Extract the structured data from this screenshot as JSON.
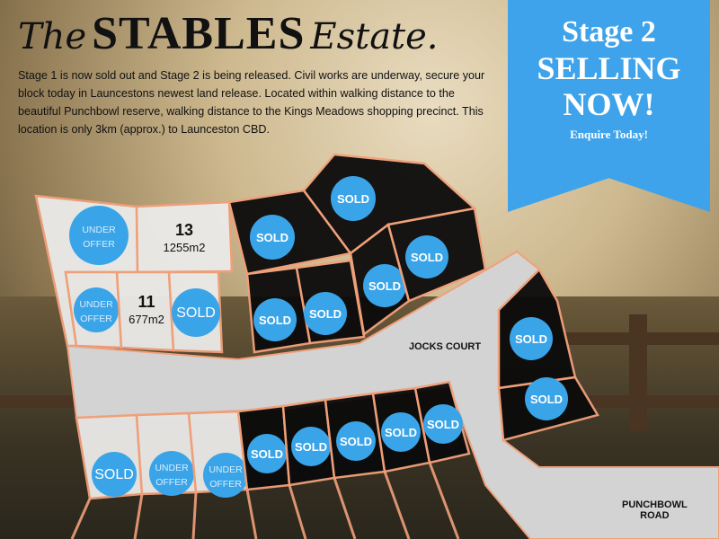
{
  "title": {
    "prefix": "The",
    "main": "STABLES",
    "suffix": "Estate."
  },
  "intro": "Stage 1 is now sold out and Stage 2 is being released. Civil works are underway, secure your block today in Launcestons newest land release. Located within walking distance to the beautiful Punchbowl reserve, walking distance to the Kings Meadows shopping precinct. This location is only 3km (approx.) to Launceston CBD.",
  "banner": {
    "line1": "Stage 2",
    "line2": "SELLING",
    "line3": "NOW!",
    "cta": "Enquire Today!",
    "color": "#3ea3ea"
  },
  "roads": {
    "jocks": "JOCKS COURT",
    "punchbowl_1": "PUNCHBOWL",
    "punchbowl_2": "ROAD"
  },
  "colors": {
    "available_lot": "#ecebe9",
    "sold_lot": "#0b0b0b",
    "boundary": "#f0a07a",
    "road": "#d3d3d3",
    "badge": "#3aa4e8"
  },
  "lots": [
    {
      "status": "available",
      "badge": [
        "UNDER",
        "OFFER"
      ]
    },
    {
      "status": "available",
      "number": "13",
      "area": "1255m2"
    },
    {
      "status": "available",
      "badge": [
        "UNDER",
        "OFFER"
      ]
    },
    {
      "status": "available",
      "number": "11",
      "area": "677m2"
    },
    {
      "status": "available",
      "badge": [
        "SOLD"
      ]
    },
    {
      "status": "sold",
      "badge": [
        "SOLD"
      ]
    },
    {
      "status": "sold",
      "badge": [
        "SOLD"
      ]
    },
    {
      "status": "sold",
      "badge": [
        "SOLD"
      ]
    },
    {
      "status": "sold",
      "badge": [
        "SOLD"
      ]
    },
    {
      "status": "sold",
      "badge": [
        "SOLD"
      ]
    },
    {
      "status": "sold",
      "badge": [
        "SOLD"
      ]
    },
    {
      "status": "sold",
      "badge": [
        "SOLD"
      ]
    },
    {
      "status": "sold",
      "badge": [
        "SOLD"
      ]
    },
    {
      "status": "available",
      "badge": [
        "SOLD"
      ]
    },
    {
      "status": "available",
      "badge": [
        "UNDER",
        "OFFER"
      ]
    },
    {
      "status": "available",
      "badge": [
        "UNDER",
        "OFFER"
      ]
    },
    {
      "status": "sold",
      "badge": [
        "SOLD"
      ]
    },
    {
      "status": "sold",
      "badge": [
        "SOLD"
      ]
    },
    {
      "status": "sold",
      "badge": [
        "SOLD"
      ]
    },
    {
      "status": "sold",
      "badge": [
        "SOLD"
      ]
    },
    {
      "status": "sold",
      "badge": [
        "SOLD"
      ]
    }
  ]
}
